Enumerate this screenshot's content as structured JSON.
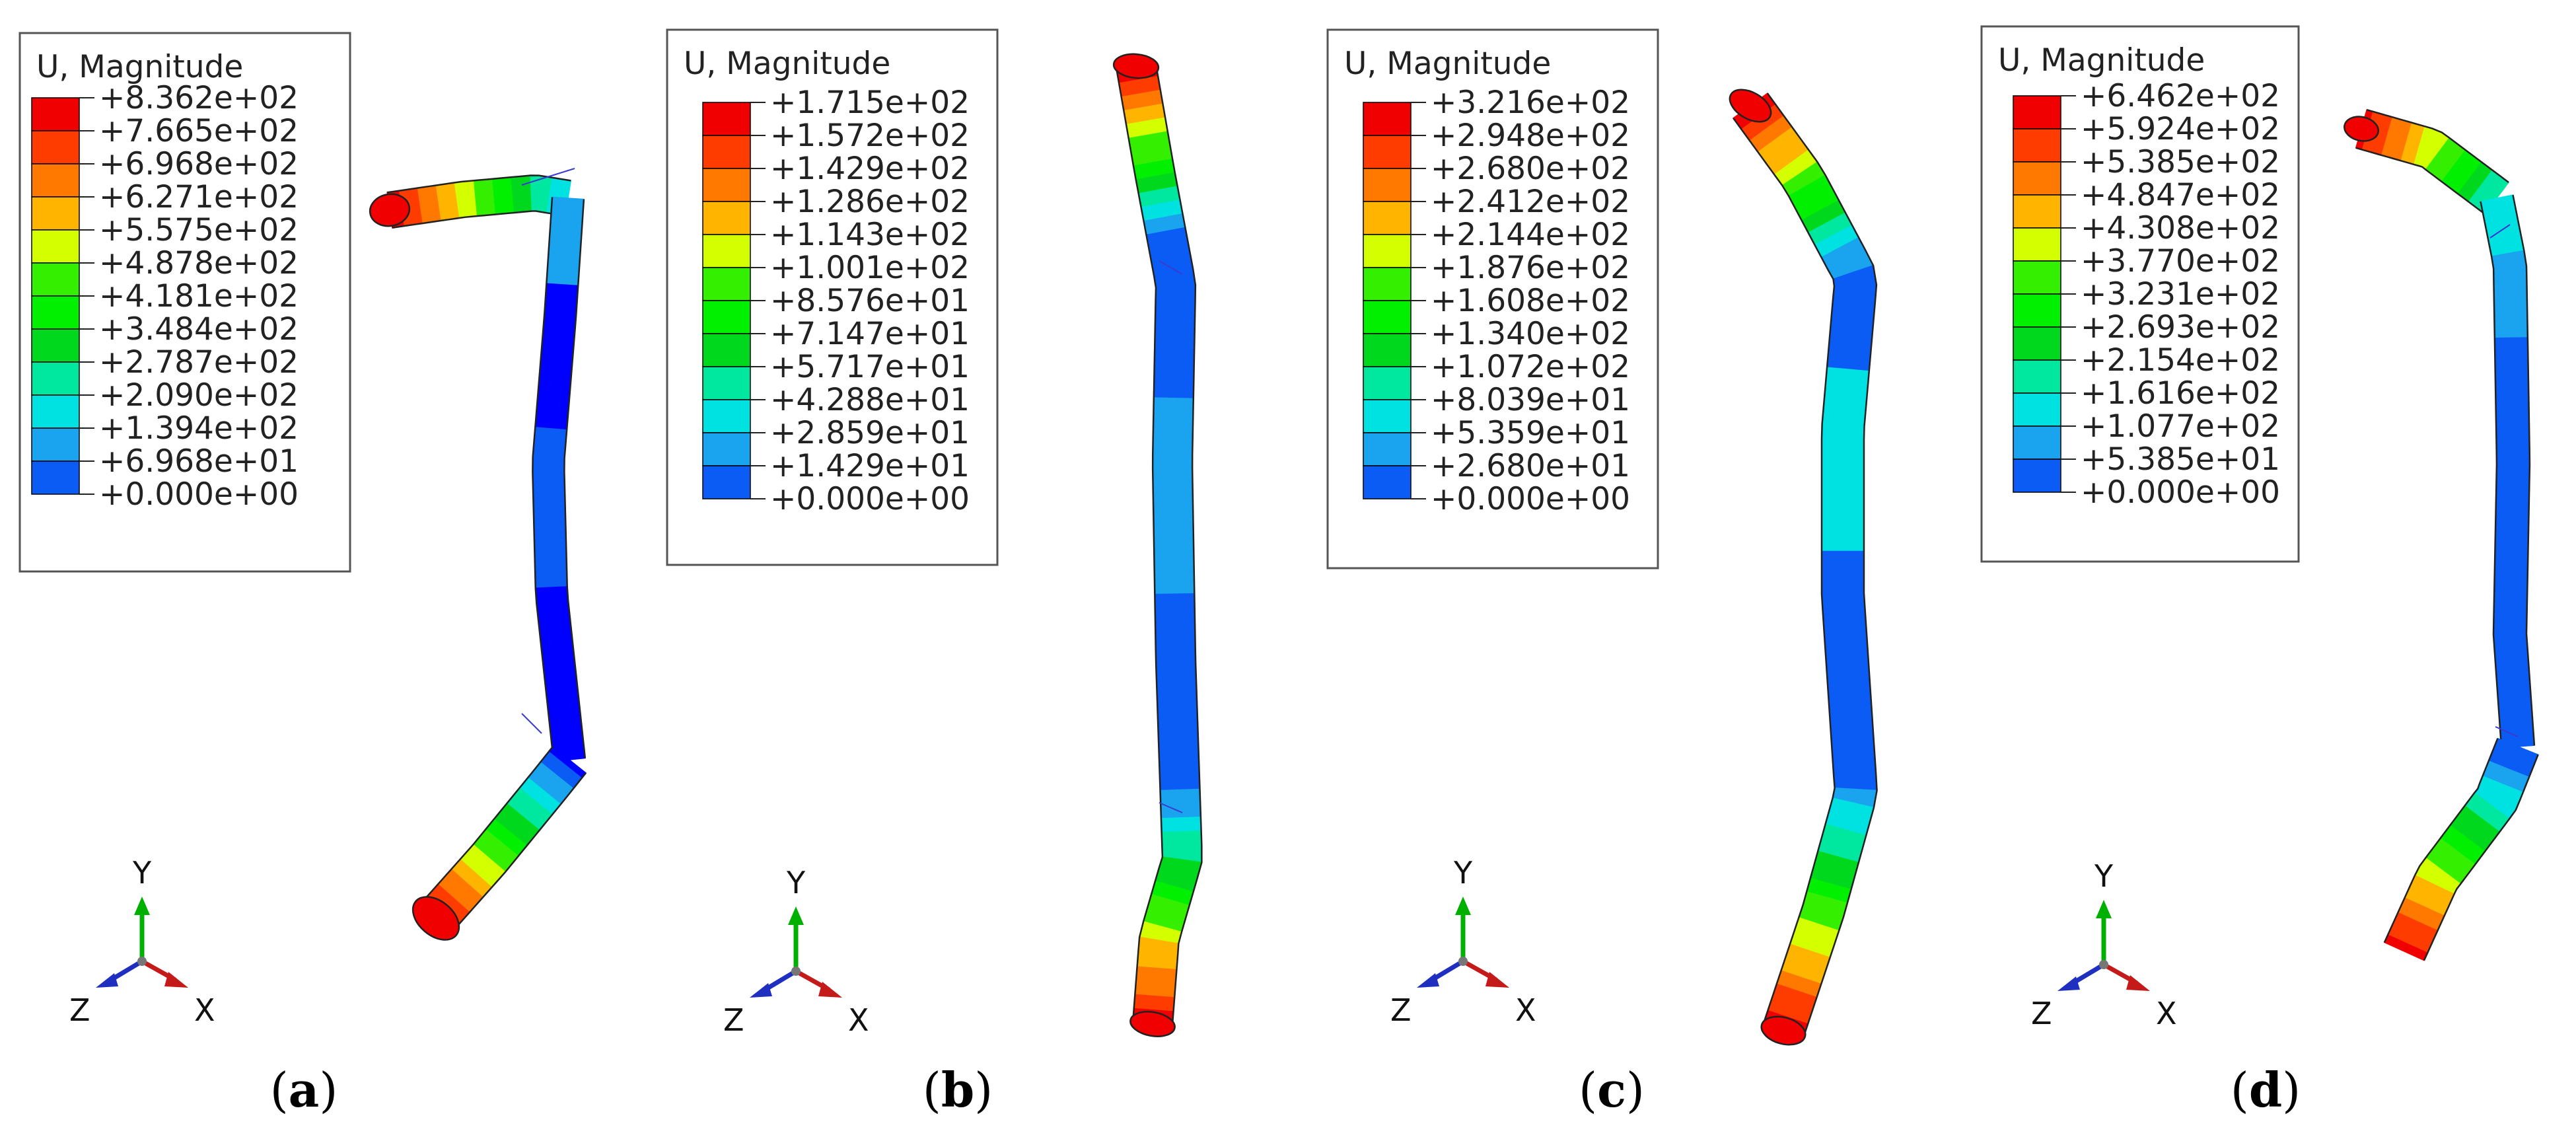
{
  "colors": [
    "#0000ff",
    "#0b5cf4",
    "#1aa3ef",
    "#00e2e2",
    "#00e8a0",
    "#00d81e",
    "#00f000",
    "#34f000",
    "#d4ff00",
    "#ffb400",
    "#ff7800",
    "#ff3c00",
    "#f00000"
  ],
  "outline": "#333333",
  "legend_title": "U, Magnitude",
  "axes": {
    "y": "Y",
    "z": "Z",
    "x": "X"
  },
  "panels": [
    {
      "caption_prefix": "(",
      "caption_letter": "a",
      "caption_suffix": ")",
      "values": [
        "+8.362e+02",
        "+7.665e+02",
        "+6.968e+02",
        "+6.271e+02",
        "+5.575e+02",
        "+4.878e+02",
        "+4.181e+02",
        "+3.484e+02",
        "+2.787e+02",
        "+2.090e+02",
        "+1.394e+02",
        "+6.968e+01",
        "+0.000e+00"
      ]
    },
    {
      "caption_prefix": "(",
      "caption_letter": "b",
      "caption_suffix": ")",
      "values": [
        "+1.715e+02",
        "+1.572e+02",
        "+1.429e+02",
        "+1.286e+02",
        "+1.143e+02",
        "+1.001e+02",
        "+8.576e+01",
        "+7.147e+01",
        "+5.717e+01",
        "+4.288e+01",
        "+2.859e+01",
        "+1.429e+01",
        "+0.000e+00"
      ]
    },
    {
      "caption_prefix": "(",
      "caption_letter": "c",
      "caption_suffix": ")",
      "values": [
        "+3.216e+02",
        "+2.948e+02",
        "+2.680e+02",
        "+2.412e+02",
        "+2.144e+02",
        "+1.876e+02",
        "+1.608e+02",
        "+1.340e+02",
        "+1.072e+02",
        "+8.039e+01",
        "+5.359e+01",
        "+2.680e+01",
        "+0.000e+00"
      ]
    },
    {
      "caption_prefix": "(",
      "caption_letter": "d",
      "caption_suffix": ")",
      "values": [
        "+6.462e+02",
        "+5.924e+02",
        "+5.385e+02",
        "+4.847e+02",
        "+4.308e+02",
        "+3.770e+02",
        "+3.231e+02",
        "+2.693e+02",
        "+2.154e+02",
        "+1.616e+02",
        "+1.077e+02",
        "+5.385e+01",
        "+0.000e+00"
      ]
    }
  ]
}
